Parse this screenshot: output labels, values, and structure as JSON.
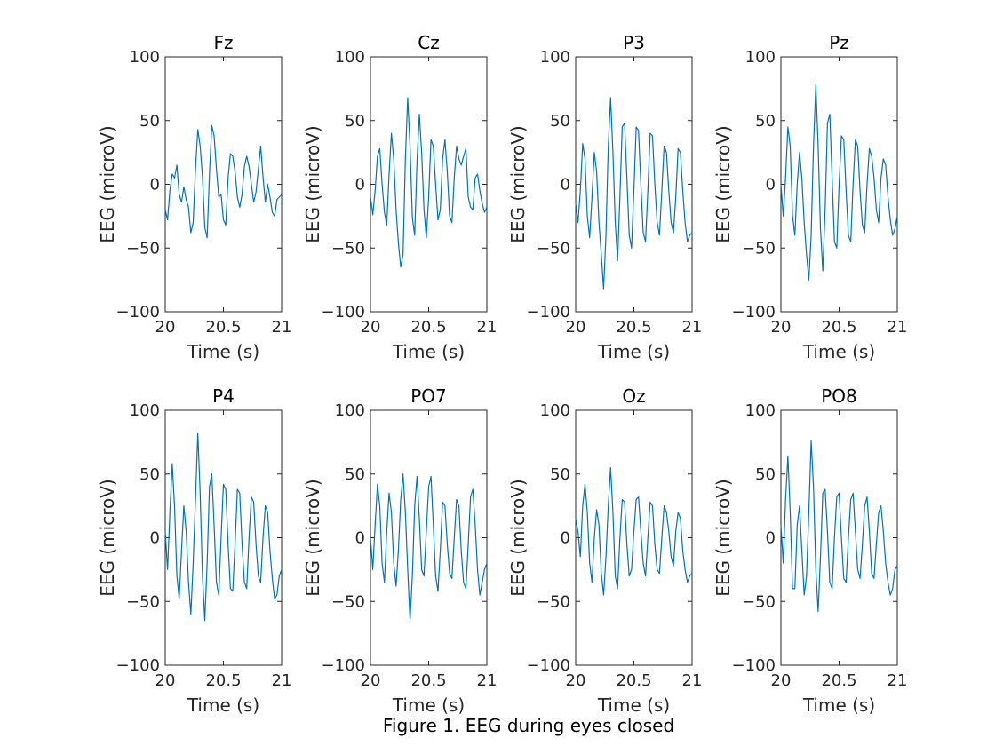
{
  "figure_caption": "Figure 1. EEG during eyes closed",
  "colors": {
    "trace": "#0072BD",
    "axis": "#262626",
    "background": "#ffffff"
  },
  "chart_data": [
    {
      "type": "line",
      "title": "Fz",
      "xlabel": "Time (s)",
      "ylabel": "EEG (microV)",
      "xlim": [
        20,
        21
      ],
      "ylim": [
        -100,
        100
      ],
      "xticks": [
        20,
        20.5,
        21
      ],
      "xtick_labels": [
        "20",
        "20.5",
        "21"
      ],
      "yticks": [
        -100,
        -50,
        0,
        50,
        100
      ],
      "ytick_labels": [
        "−100",
        "−50",
        "0",
        "50",
        "100"
      ],
      "grid": false,
      "series": [
        {
          "x": [
            20.0,
            20.02,
            20.04,
            20.06,
            20.08,
            20.1,
            20.12,
            20.14,
            20.16,
            20.18,
            20.2,
            20.22,
            20.24,
            20.26,
            20.28,
            20.3,
            20.32,
            20.34,
            20.36,
            20.38,
            20.4,
            20.42,
            20.44,
            20.46,
            20.48,
            20.5,
            20.52,
            20.54,
            20.56,
            20.58,
            20.6,
            20.62,
            20.64,
            20.66,
            20.68,
            20.7,
            20.72,
            20.74,
            20.76,
            20.78,
            20.8,
            20.82,
            20.84,
            20.86,
            20.88,
            20.9,
            20.92,
            20.94,
            20.96,
            20.98,
            21.0
          ],
          "y": [
            -20,
            -28,
            -5,
            8,
            5,
            15,
            -8,
            -14,
            -2,
            -12,
            -18,
            -38,
            -30,
            12,
            43,
            30,
            6,
            -34,
            -42,
            8,
            46,
            38,
            12,
            -10,
            -8,
            -28,
            -32,
            5,
            24,
            22,
            10,
            -10,
            -18,
            -8,
            14,
            22,
            14,
            0,
            -14,
            -6,
            12,
            30,
            6,
            -14,
            0,
            -10,
            -22,
            -25,
            -12,
            -10,
            -8
          ]
        }
      ]
    },
    {
      "type": "line",
      "title": "Cz",
      "xlabel": "Time (s)",
      "ylabel": "EEG (microV)",
      "xlim": [
        20,
        21
      ],
      "ylim": [
        -100,
        100
      ],
      "xticks": [
        20,
        20.5,
        21
      ],
      "xtick_labels": [
        "20",
        "20.5",
        "21"
      ],
      "yticks": [
        -100,
        -50,
        0,
        50,
        100
      ],
      "ytick_labels": [
        "−100",
        "−50",
        "0",
        "50",
        "100"
      ],
      "grid": false,
      "series": [
        {
          "x": [
            20.0,
            20.02,
            20.04,
            20.06,
            20.08,
            20.1,
            20.12,
            20.14,
            20.16,
            20.18,
            20.2,
            20.22,
            20.24,
            20.26,
            20.28,
            20.3,
            20.32,
            20.34,
            20.36,
            20.38,
            20.4,
            20.42,
            20.44,
            20.46,
            20.48,
            20.5,
            20.52,
            20.54,
            20.56,
            20.58,
            20.6,
            20.62,
            20.64,
            20.66,
            20.68,
            20.7,
            20.72,
            20.74,
            20.76,
            20.78,
            20.8,
            20.82,
            20.84,
            20.86,
            20.88,
            20.9,
            20.92,
            20.94,
            20.96,
            20.98,
            21.0
          ],
          "y": [
            -10,
            -24,
            -5,
            22,
            28,
            0,
            -22,
            -32,
            8,
            40,
            20,
            -20,
            -46,
            -65,
            -55,
            20,
            68,
            30,
            -26,
            -40,
            18,
            55,
            25,
            -20,
            -42,
            -10,
            35,
            30,
            0,
            -28,
            -20,
            20,
            35,
            10,
            -25,
            -30,
            5,
            30,
            20,
            15,
            22,
            28,
            -10,
            -18,
            -20,
            5,
            8,
            -5,
            -15,
            -22,
            -18
          ]
        }
      ]
    },
    {
      "type": "line",
      "title": "P3",
      "xlabel": "Time (s)",
      "ylabel": "EEG (microV)",
      "xlim": [
        20,
        21
      ],
      "ylim": [
        -100,
        100
      ],
      "xticks": [
        20,
        20.5,
        21
      ],
      "xtick_labels": [
        "20",
        "20.5",
        "21"
      ],
      "yticks": [
        -100,
        -50,
        0,
        50,
        100
      ],
      "ytick_labels": [
        "−100",
        "−50",
        "0",
        "50",
        "100"
      ],
      "grid": false,
      "series": [
        {
          "x": [
            20.0,
            20.02,
            20.04,
            20.06,
            20.08,
            20.1,
            20.12,
            20.14,
            20.16,
            20.18,
            20.2,
            20.22,
            20.24,
            20.26,
            20.28,
            20.3,
            20.32,
            20.34,
            20.36,
            20.38,
            20.4,
            20.42,
            20.44,
            20.46,
            20.48,
            20.5,
            20.52,
            20.54,
            20.56,
            20.58,
            20.6,
            20.62,
            20.64,
            20.66,
            20.68,
            20.7,
            20.72,
            20.74,
            20.76,
            20.78,
            20.8,
            20.82,
            20.84,
            20.86,
            20.88,
            20.9,
            20.92,
            20.94,
            20.96,
            20.98,
            21.0
          ],
          "y": [
            -15,
            -30,
            -5,
            32,
            20,
            -25,
            -42,
            -10,
            25,
            10,
            -30,
            -55,
            -82,
            -40,
            30,
            68,
            25,
            -30,
            -60,
            -10,
            45,
            48,
            5,
            -40,
            -50,
            -5,
            45,
            42,
            0,
            -38,
            -45,
            -5,
            40,
            38,
            0,
            -30,
            -40,
            -5,
            30,
            25,
            -5,
            -30,
            -38,
            -10,
            28,
            25,
            -5,
            -30,
            -45,
            -40,
            -38
          ]
        }
      ]
    },
    {
      "type": "line",
      "title": "Pz",
      "xlabel": "Time (s)",
      "ylabel": "EEG (microV)",
      "xlim": [
        20,
        21
      ],
      "ylim": [
        -100,
        100
      ],
      "xticks": [
        20,
        20.5,
        21
      ],
      "xtick_labels": [
        "20",
        "20.5",
        "21"
      ],
      "yticks": [
        -100,
        -50,
        0,
        50,
        100
      ],
      "ytick_labels": [
        "−100",
        "−50",
        "0",
        "50",
        "100"
      ],
      "grid": false,
      "series": [
        {
          "x": [
            20.0,
            20.02,
            20.04,
            20.06,
            20.08,
            20.1,
            20.12,
            20.14,
            20.16,
            20.18,
            20.2,
            20.22,
            20.24,
            20.26,
            20.28,
            20.3,
            20.32,
            20.34,
            20.36,
            20.38,
            20.4,
            20.42,
            20.44,
            20.46,
            20.48,
            20.5,
            20.52,
            20.54,
            20.56,
            20.58,
            20.6,
            20.62,
            20.64,
            20.66,
            20.68,
            20.7,
            20.72,
            20.74,
            20.76,
            20.78,
            20.8,
            20.82,
            20.84,
            20.86,
            20.88,
            20.9,
            20.92,
            20.94,
            20.96,
            20.98,
            21.0
          ],
          "y": [
            0,
            -25,
            5,
            45,
            30,
            -25,
            -40,
            0,
            25,
            5,
            -30,
            -55,
            -75,
            -40,
            30,
            78,
            30,
            -35,
            -68,
            -20,
            48,
            55,
            5,
            -45,
            -50,
            0,
            38,
            35,
            -5,
            -40,
            -45,
            0,
            35,
            30,
            -5,
            -32,
            -38,
            0,
            28,
            22,
            5,
            -20,
            -30,
            5,
            20,
            15,
            -10,
            -28,
            -40,
            -35,
            -25
          ]
        }
      ]
    },
    {
      "type": "line",
      "title": "P4",
      "xlabel": "Time (s)",
      "ylabel": "EEG (microV)",
      "xlim": [
        20,
        21
      ],
      "ylim": [
        -100,
        100
      ],
      "xticks": [
        20,
        20.5,
        21
      ],
      "xtick_labels": [
        "20",
        "20.5",
        "21"
      ],
      "yticks": [
        -100,
        -50,
        0,
        50,
        100
      ],
      "ytick_labels": [
        "−100",
        "−50",
        "0",
        "50",
        "100"
      ],
      "grid": false,
      "series": [
        {
          "x": [
            20.0,
            20.02,
            20.04,
            20.06,
            20.08,
            20.1,
            20.12,
            20.14,
            20.16,
            20.18,
            20.2,
            20.22,
            20.24,
            20.26,
            20.28,
            20.3,
            20.32,
            20.34,
            20.36,
            20.38,
            20.4,
            20.42,
            20.44,
            20.46,
            20.48,
            20.5,
            20.52,
            20.54,
            20.56,
            20.58,
            20.6,
            20.62,
            20.64,
            20.66,
            20.68,
            20.7,
            20.72,
            20.74,
            20.76,
            20.78,
            20.8,
            20.82,
            20.84,
            20.86,
            20.88,
            20.9,
            20.92,
            20.94,
            20.96,
            20.98,
            21.0
          ],
          "y": [
            5,
            -25,
            20,
            58,
            25,
            -30,
            -48,
            -10,
            25,
            5,
            -35,
            -60,
            -20,
            30,
            82,
            35,
            -30,
            -65,
            -20,
            40,
            50,
            10,
            -35,
            -45,
            0,
            42,
            38,
            -5,
            -40,
            -42,
            -5,
            38,
            35,
            -5,
            -35,
            -40,
            0,
            32,
            28,
            -5,
            -30,
            -35,
            0,
            25,
            20,
            -10,
            -32,
            -48,
            -45,
            -30,
            -25
          ]
        }
      ]
    },
    {
      "type": "line",
      "title": "PO7",
      "xlabel": "Time (s)",
      "ylabel": "EEG (microV)",
      "xlim": [
        20,
        21
      ],
      "ylim": [
        -100,
        100
      ],
      "xticks": [
        20,
        20.5,
        21
      ],
      "xtick_labels": [
        "20",
        "20.5",
        "21"
      ],
      "yticks": [
        -100,
        -50,
        0,
        50,
        100
      ],
      "ytick_labels": [
        "−100",
        "−50",
        "0",
        "50",
        "100"
      ],
      "grid": false,
      "series": [
        {
          "x": [
            20.0,
            20.02,
            20.04,
            20.06,
            20.08,
            20.1,
            20.12,
            20.14,
            20.16,
            20.18,
            20.2,
            20.22,
            20.24,
            20.26,
            20.28,
            20.3,
            20.32,
            20.34,
            20.36,
            20.38,
            20.4,
            20.42,
            20.44,
            20.46,
            20.48,
            20.5,
            20.52,
            20.54,
            20.56,
            20.58,
            20.6,
            20.62,
            20.64,
            20.66,
            20.68,
            20.7,
            20.72,
            20.74,
            20.76,
            20.78,
            20.8,
            20.82,
            20.84,
            20.86,
            20.88,
            20.9,
            20.92,
            20.94,
            20.96,
            20.98,
            21.0
          ],
          "y": [
            0,
            -25,
            10,
            42,
            25,
            -20,
            -35,
            5,
            35,
            20,
            -20,
            -38,
            -10,
            30,
            50,
            20,
            -25,
            -65,
            -30,
            25,
            48,
            15,
            -25,
            -30,
            5,
            40,
            48,
            10,
            -30,
            -42,
            -10,
            28,
            25,
            -5,
            -28,
            -32,
            0,
            30,
            25,
            -10,
            -35,
            -40,
            -5,
            32,
            38,
            10,
            -25,
            -45,
            -35,
            -25,
            -20
          ]
        }
      ]
    },
    {
      "type": "line",
      "title": "Oz",
      "xlabel": "Time (s)",
      "ylabel": "EEG (microV)",
      "xlim": [
        20,
        21
      ],
      "ylim": [
        -100,
        100
      ],
      "xticks": [
        20,
        20.5,
        21
      ],
      "xtick_labels": [
        "20",
        "20.5",
        "21"
      ],
      "yticks": [
        -100,
        -50,
        0,
        50,
        100
      ],
      "ytick_labels": [
        "−100",
        "−50",
        "0",
        "50",
        "100"
      ],
      "grid": false,
      "series": [
        {
          "x": [
            20.0,
            20.02,
            20.04,
            20.06,
            20.08,
            20.1,
            20.12,
            20.14,
            20.16,
            20.18,
            20.2,
            20.22,
            20.24,
            20.26,
            20.28,
            20.3,
            20.32,
            20.34,
            20.36,
            20.38,
            20.4,
            20.42,
            20.44,
            20.46,
            20.48,
            20.5,
            20.52,
            20.54,
            20.56,
            20.58,
            20.6,
            20.62,
            20.64,
            20.66,
            20.68,
            20.7,
            20.72,
            20.74,
            20.76,
            20.78,
            20.8,
            20.82,
            20.84,
            20.86,
            20.88,
            20.9,
            20.92,
            20.94,
            20.96,
            20.98,
            21.0
          ],
          "y": [
            15,
            5,
            -15,
            25,
            42,
            20,
            -20,
            -35,
            0,
            22,
            10,
            -28,
            -45,
            -15,
            25,
            55,
            20,
            -30,
            -40,
            0,
            30,
            28,
            -5,
            -30,
            -25,
            5,
            30,
            32,
            5,
            -20,
            -30,
            0,
            28,
            25,
            -5,
            -25,
            -28,
            0,
            25,
            20,
            5,
            -15,
            -22,
            5,
            20,
            15,
            -10,
            -25,
            -35,
            -30,
            -28
          ]
        }
      ]
    },
    {
      "type": "line",
      "title": "PO8",
      "xlabel": "Time (s)",
      "ylabel": "EEG (microV)",
      "xlim": [
        20,
        21
      ],
      "ylim": [
        -100,
        100
      ],
      "xticks": [
        20,
        20.5,
        21
      ],
      "xtick_labels": [
        "20",
        "20.5",
        "21"
      ],
      "yticks": [
        -100,
        -50,
        0,
        50,
        100
      ],
      "ytick_labels": [
        "−100",
        "−50",
        "0",
        "50",
        "100"
      ],
      "grid": false,
      "series": [
        {
          "x": [
            20.0,
            20.02,
            20.04,
            20.06,
            20.08,
            20.1,
            20.12,
            20.14,
            20.16,
            20.18,
            20.2,
            20.22,
            20.24,
            20.26,
            20.28,
            20.3,
            20.32,
            20.34,
            20.36,
            20.38,
            20.4,
            20.42,
            20.44,
            20.46,
            20.48,
            20.5,
            20.52,
            20.54,
            20.56,
            20.58,
            20.6,
            20.62,
            20.64,
            20.66,
            20.68,
            20.7,
            20.72,
            20.74,
            20.76,
            20.78,
            20.8,
            20.82,
            20.84,
            20.86,
            20.88,
            20.9,
            20.92,
            20.94,
            20.96,
            20.98,
            21.0
          ],
          "y": [
            10,
            -20,
            30,
            64,
            20,
            -40,
            -40,
            10,
            25,
            -10,
            -45,
            -30,
            20,
            76,
            40,
            -25,
            -58,
            -15,
            35,
            38,
            5,
            -35,
            -40,
            0,
            32,
            35,
            0,
            -32,
            -35,
            0,
            30,
            35,
            5,
            -25,
            -32,
            -5,
            25,
            32,
            5,
            -28,
            -32,
            -5,
            20,
            25,
            5,
            -20,
            -35,
            -45,
            -40,
            -25,
            -22
          ]
        }
      ]
    }
  ]
}
